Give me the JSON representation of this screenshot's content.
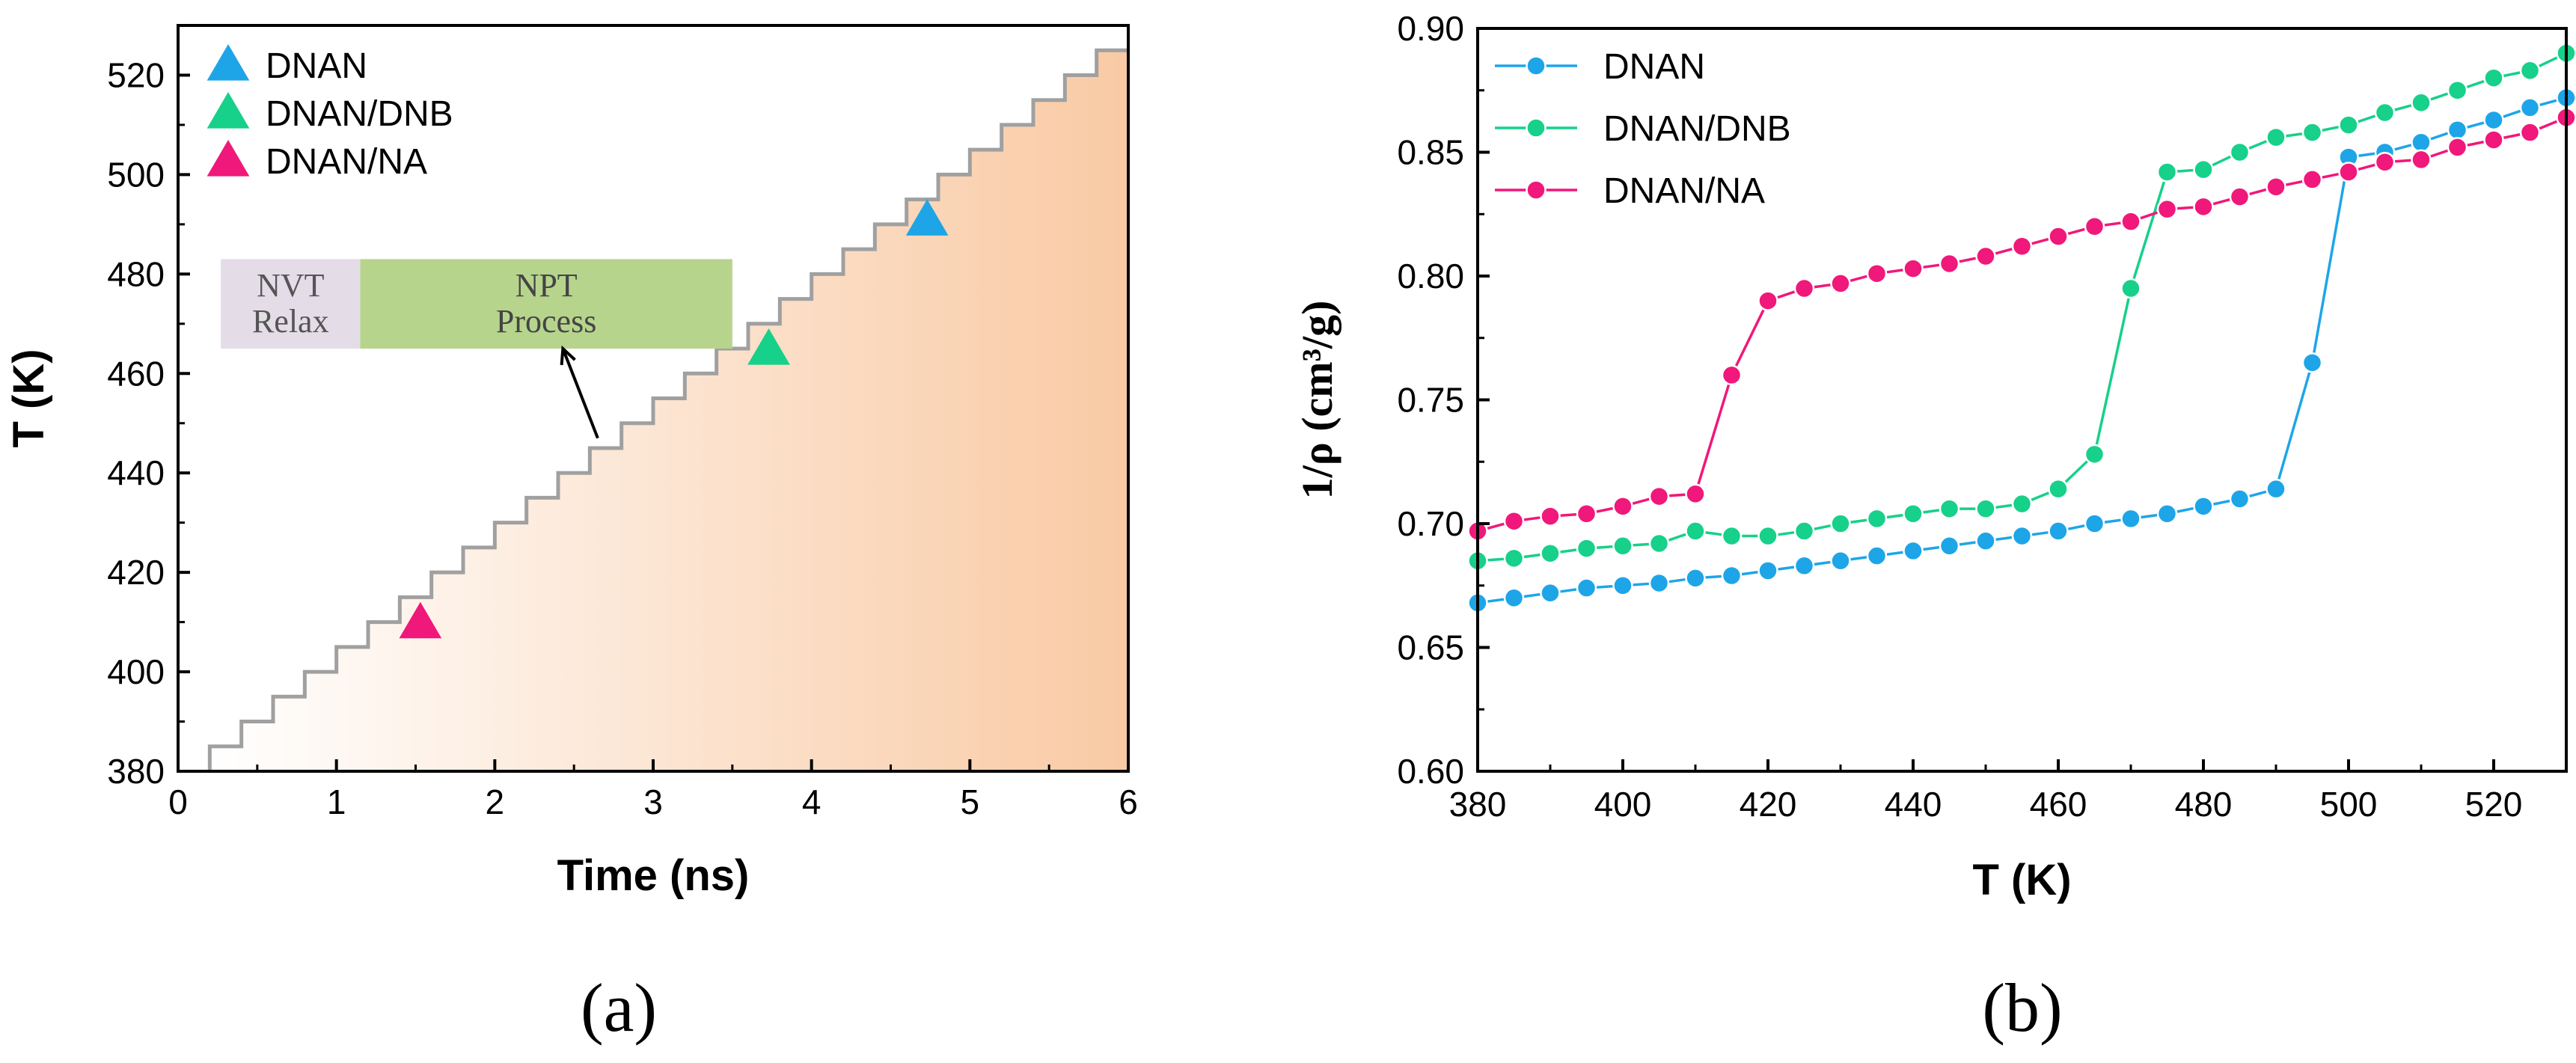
{
  "figure": {
    "panel_a_label": "(a)",
    "panel_b_label": "(b)"
  },
  "colors": {
    "dnan": "#1ea5e8",
    "dnan_dnb": "#17d08a",
    "dnan_na": "#f0187a",
    "gradient_end": "#f9caa4",
    "nvt_box": "#e4dde8",
    "npt_box": "#b7d48d",
    "step_line": "#a0a0a0"
  },
  "chart_data": [
    {
      "id": "panel-a",
      "type": "line",
      "xlabel": "Time (ns)",
      "ylabel": "T (K)",
      "xlim": [
        0,
        6
      ],
      "ylim": [
        380,
        530
      ],
      "xticks": [
        0,
        1,
        2,
        3,
        4,
        5,
        6
      ],
      "yticks": [
        380,
        400,
        420,
        440,
        460,
        480,
        500,
        520
      ],
      "step_series": {
        "name": "temperature schedule",
        "t_start": 0.2,
        "step_width": 0.2,
        "T_start": 385,
        "T_step": 5,
        "n_steps": 29
      },
      "markers": [
        {
          "name": "DNAN",
          "x": 4.73,
          "y": 491,
          "color": "#1ea5e8"
        },
        {
          "name": "DNAN/DNB",
          "x": 3.73,
          "y": 465,
          "color": "#17d08a"
        },
        {
          "name": "DNAN/NA",
          "x": 1.53,
          "y": 410,
          "color": "#f0187a"
        }
      ],
      "legend": [
        {
          "label": "DNAN",
          "color": "#1ea5e8"
        },
        {
          "label": "DNAN/DNB",
          "color": "#17d08a"
        },
        {
          "label": "DNAN/NA",
          "color": "#f0187a"
        }
      ],
      "legend_position": "top-left",
      "annotations": {
        "nvt_line1": "NVT",
        "nvt_line2": "Relax",
        "npt_line1": "NPT",
        "npt_line2": "Process",
        "nvt_range": [
          0.27,
          1.15
        ],
        "npt_range": [
          1.15,
          3.5
        ],
        "box_T_range": [
          465,
          483
        ],
        "arrow_from": [
          2.65,
          447
        ],
        "arrow_to": [
          2.43,
          465
        ]
      }
    },
    {
      "id": "panel-b",
      "type": "line",
      "xlabel": "T (K)",
      "ylabel": "1/ρ (cm³/g)",
      "xlim": [
        380,
        530
      ],
      "ylim": [
        0.6,
        0.9
      ],
      "xticks": [
        380,
        400,
        420,
        440,
        460,
        480,
        500,
        520
      ],
      "yticks": [
        0.6,
        0.65,
        0.7,
        0.75,
        0.8,
        0.85,
        0.9
      ],
      "xtick_labels": [
        "380",
        "400",
        "420",
        "440",
        "460",
        "480",
        "500",
        "520"
      ],
      "ytick_labels": [
        "0.60",
        "0.65",
        "0.70",
        "0.75",
        "0.80",
        "0.85",
        "0.90"
      ],
      "legend_position": "top-left",
      "series": [
        {
          "name": "DNAN",
          "color": "#1ea5e8",
          "x": [
            380,
            385,
            390,
            395,
            400,
            405,
            410,
            415,
            420,
            425,
            430,
            435,
            440,
            445,
            450,
            455,
            460,
            465,
            470,
            475,
            480,
            485,
            490,
            495,
            500,
            505,
            510,
            515,
            520,
            525,
            530
          ],
          "y": [
            0.668,
            0.67,
            0.672,
            0.674,
            0.675,
            0.676,
            0.678,
            0.679,
            0.681,
            0.683,
            0.685,
            0.687,
            0.689,
            0.691,
            0.693,
            0.695,
            0.697,
            0.7,
            0.702,
            0.704,
            0.707,
            0.71,
            0.714,
            0.765,
            0.848,
            0.85,
            0.854,
            0.859,
            0.863,
            0.868,
            0.872
          ]
        },
        {
          "name": "DNAN/DNB",
          "color": "#17d08a",
          "x": [
            380,
            385,
            390,
            395,
            400,
            405,
            410,
            415,
            420,
            425,
            430,
            435,
            440,
            445,
            450,
            455,
            460,
            465,
            470,
            475,
            480,
            485,
            490,
            495,
            500,
            505,
            510,
            515,
            520,
            525,
            530
          ],
          "y": [
            0.685,
            0.686,
            0.688,
            0.69,
            0.691,
            0.692,
            0.697,
            0.695,
            0.695,
            0.697,
            0.7,
            0.702,
            0.704,
            0.706,
            0.706,
            0.708,
            0.714,
            0.728,
            0.795,
            0.842,
            0.843,
            0.85,
            0.856,
            0.858,
            0.861,
            0.866,
            0.87,
            0.875,
            0.88,
            0.883,
            0.89
          ]
        },
        {
          "name": "DNAN/NA",
          "color": "#f0187a",
          "x": [
            380,
            385,
            390,
            395,
            400,
            405,
            410,
            415,
            420,
            425,
            430,
            435,
            440,
            445,
            450,
            455,
            460,
            465,
            470,
            475,
            480,
            485,
            490,
            495,
            500,
            505,
            510,
            515,
            520,
            525,
            530
          ],
          "y": [
            0.697,
            0.701,
            0.703,
            0.704,
            0.707,
            0.711,
            0.712,
            0.76,
            0.79,
            0.795,
            0.797,
            0.801,
            0.803,
            0.805,
            0.808,
            0.812,
            0.816,
            0.82,
            0.822,
            0.827,
            0.828,
            0.832,
            0.836,
            0.839,
            0.842,
            0.846,
            0.847,
            0.852,
            0.855,
            0.858,
            0.864
          ]
        }
      ]
    }
  ]
}
